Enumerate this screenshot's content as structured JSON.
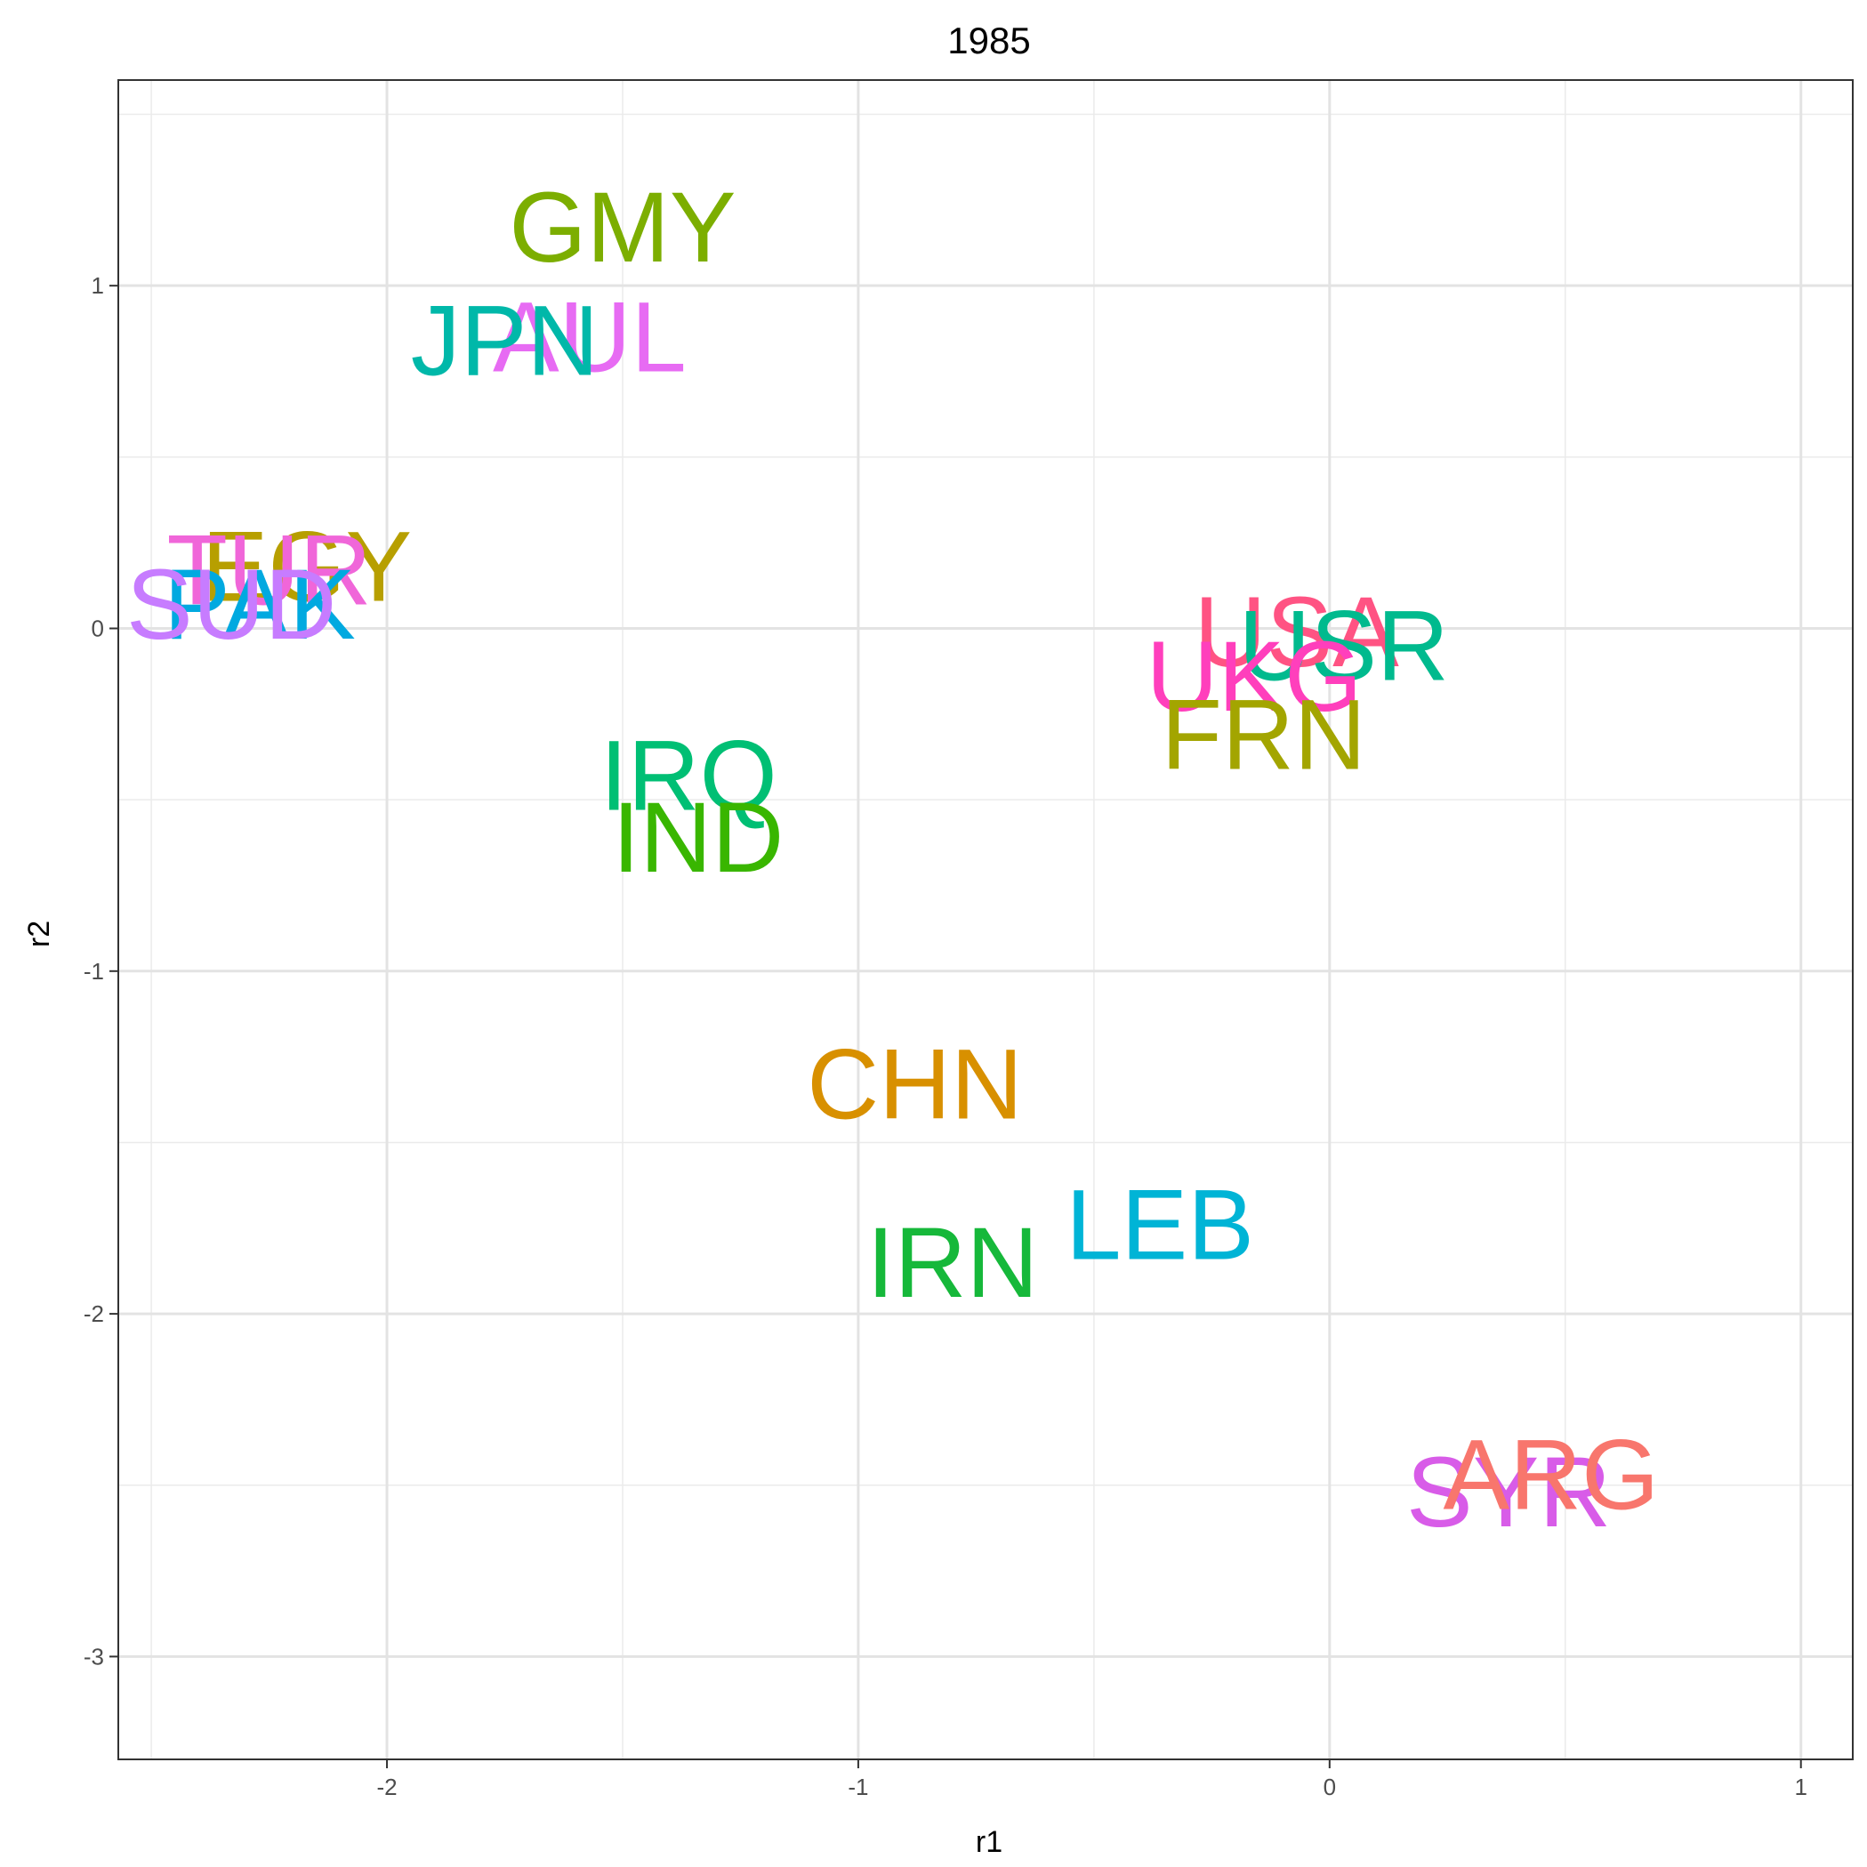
{
  "chart_data": {
    "type": "scatter",
    "title": "1985",
    "xlabel": "r1",
    "ylabel": "r2",
    "xlim": [
      -2.57,
      1.11
    ],
    "ylim": [
      -3.3,
      1.6
    ],
    "x_ticks": [
      -2,
      -1,
      0,
      1
    ],
    "y_ticks": [
      -3,
      -2,
      -1,
      0,
      1
    ],
    "x_tick_labels": [
      "-2",
      "-1",
      "0",
      "1"
    ],
    "y_tick_labels": [
      "-3",
      "-2",
      "-1",
      "0",
      "1"
    ],
    "grid": true,
    "label_style": "text-labels-as-points",
    "points": [
      {
        "label": "GMY",
        "x": -1.5,
        "y": 1.17,
        "color": "#7CAE00"
      },
      {
        "label": "AUL",
        "x": -1.57,
        "y": 0.85,
        "color": "#E76BF3"
      },
      {
        "label": "JPN",
        "x": -1.75,
        "y": 0.84,
        "color": "#00B8A9"
      },
      {
        "label": "EGY",
        "x": -2.17,
        "y": 0.18,
        "color": "#B79F00"
      },
      {
        "label": "TUR",
        "x": -2.25,
        "y": 0.17,
        "color": "#F066D9"
      },
      {
        "label": "PAK",
        "x": -2.27,
        "y": 0.07,
        "color": "#00A9E0"
      },
      {
        "label": "SUD",
        "x": -2.33,
        "y": 0.07,
        "color": "#C77CFF"
      },
      {
        "label": "USA",
        "x": -0.07,
        "y": -0.01,
        "color": "#FF5383"
      },
      {
        "label": "USR",
        "x": 0.03,
        "y": -0.05,
        "color": "#00BA8E"
      },
      {
        "label": "UKG",
        "x": -0.16,
        "y": -0.14,
        "color": "#FF3FBC"
      },
      {
        "label": "FRN",
        "x": -0.14,
        "y": -0.31,
        "color": "#A3A500"
      },
      {
        "label": "IRQ",
        "x": -1.36,
        "y": -0.43,
        "color": "#00BF74"
      },
      {
        "label": "IND",
        "x": -1.34,
        "y": -0.61,
        "color": "#39B600"
      },
      {
        "label": "CHN",
        "x": -0.88,
        "y": -1.33,
        "color": "#D89000"
      },
      {
        "label": "LEB",
        "x": -0.36,
        "y": -1.74,
        "color": "#00B4D6"
      },
      {
        "label": "IRN",
        "x": -0.8,
        "y": -1.85,
        "color": "#16B83A"
      },
      {
        "label": "SYR",
        "x": 0.38,
        "y": -2.52,
        "color": "#D85CE8"
      },
      {
        "label": "ARG",
        "x": 0.47,
        "y": -2.47,
        "color": "#F8766D"
      }
    ]
  }
}
